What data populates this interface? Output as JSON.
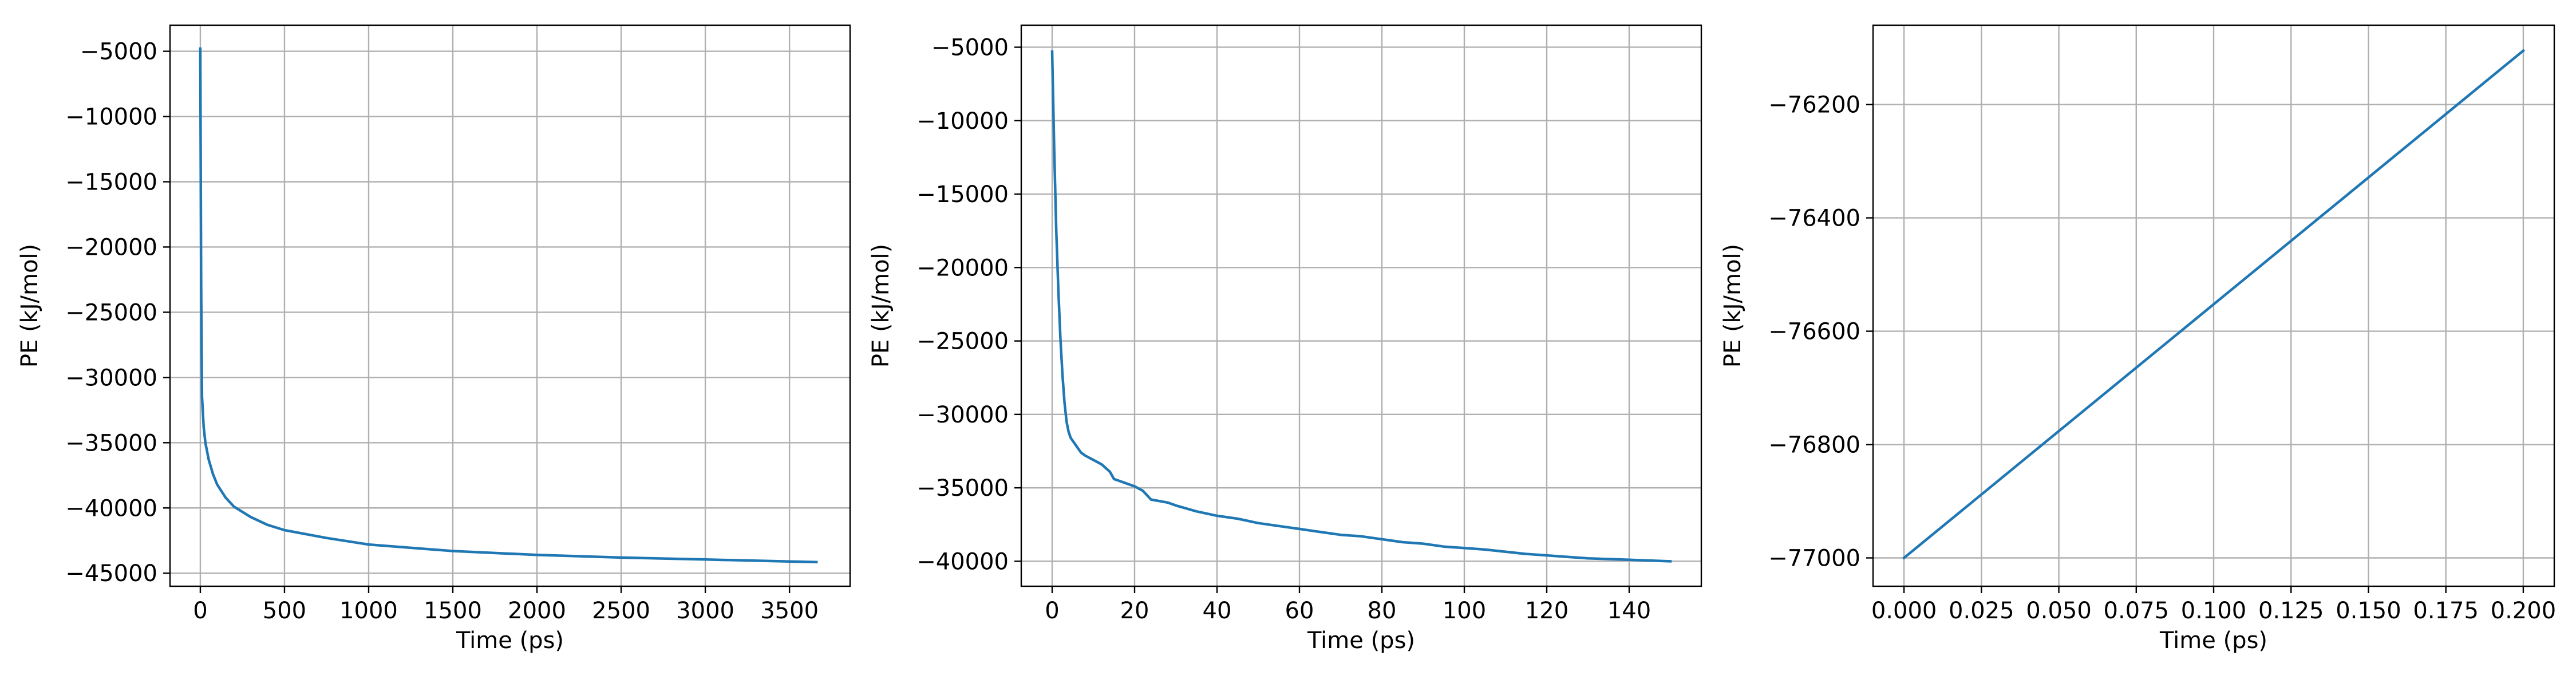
{
  "chart_data": [
    {
      "type": "line",
      "xlabel": "Time (ps)",
      "ylabel": "PE (kJ/mol)",
      "xlim": [
        -180,
        3860
      ],
      "ylim": [
        -46000,
        -3000
      ],
      "xticks": [
        0,
        500,
        1000,
        1500,
        2000,
        2500,
        3000,
        3500
      ],
      "xtick_labels": [
        "0",
        "500",
        "1000",
        "1500",
        "2000",
        "2500",
        "3000",
        "3500"
      ],
      "yticks": [
        -5000,
        -10000,
        -15000,
        -20000,
        -25000,
        -30000,
        -35000,
        -40000,
        -45000
      ],
      "ytick_labels": [
        "−5000",
        "−10000",
        "−15000",
        "−20000",
        "−25000",
        "−30000",
        "−35000",
        "−40000",
        "−45000"
      ],
      "grid": true,
      "color": "#1f77b4",
      "series": [
        {
          "x": [
            0,
            5,
            10,
            20,
            30,
            50,
            75,
            100,
            150,
            200,
            300,
            400,
            500,
            750,
            1000,
            1500,
            2000,
            2500,
            3000,
            3500,
            3660
          ],
          "y": [
            -4800,
            -23000,
            -31500,
            -33800,
            -35000,
            -36300,
            -37400,
            -38200,
            -39200,
            -39900,
            -40700,
            -41300,
            -41700,
            -42300,
            -42800,
            -43300,
            -43600,
            -43800,
            -43950,
            -44100,
            -44150
          ]
        }
      ]
    },
    {
      "type": "line",
      "xlabel": "Time (ps)",
      "ylabel": "PE (kJ/mol)",
      "xlim": [
        -7.5,
        157.5
      ],
      "ylim": [
        -41700,
        -3500
      ],
      "xticks": [
        0,
        20,
        40,
        60,
        80,
        100,
        120,
        140
      ],
      "xtick_labels": [
        "0",
        "20",
        "40",
        "60",
        "80",
        "100",
        "120",
        "140"
      ],
      "yticks": [
        -5000,
        -10000,
        -15000,
        -20000,
        -25000,
        -30000,
        -35000,
        -40000
      ],
      "ytick_labels": [
        "−5000",
        "−10000",
        "−15000",
        "−20000",
        "−25000",
        "−30000",
        "−35000",
        "−40000"
      ],
      "grid": true,
      "color": "#1f77b4",
      "series": [
        {
          "x": [
            0,
            0.5,
            1,
            1.5,
            2,
            2.5,
            3,
            3.5,
            4,
            4.5,
            5,
            6,
            7,
            8,
            10,
            12,
            14,
            15,
            16,
            18,
            20,
            22,
            24,
            26,
            28,
            30,
            35,
            40,
            45,
            50,
            55,
            60,
            65,
            70,
            75,
            80,
            85,
            90,
            95,
            100,
            105,
            110,
            115,
            120,
            125,
            130,
            135,
            140,
            145,
            150
          ],
          "y": [
            -5300,
            -12000,
            -17500,
            -21500,
            -24800,
            -27300,
            -29200,
            -30500,
            -31200,
            -31600,
            -31800,
            -32200,
            -32600,
            -32800,
            -33100,
            -33400,
            -33900,
            -34400,
            -34500,
            -34700,
            -34900,
            -35200,
            -35800,
            -35900,
            -36000,
            -36200,
            -36600,
            -36900,
            -37100,
            -37400,
            -37600,
            -37800,
            -38000,
            -38200,
            -38300,
            -38500,
            -38700,
            -38800,
            -39000,
            -39100,
            -39200,
            -39350,
            -39500,
            -39600,
            -39700,
            -39800,
            -39850,
            -39900,
            -39950,
            -40000
          ]
        }
      ]
    },
    {
      "type": "line",
      "xlabel": "Time (ps)",
      "ylabel": "PE (kJ/mol)",
      "xlim": [
        -0.01,
        0.21
      ],
      "ylim": [
        -77050,
        -76060
      ],
      "xticks": [
        0,
        0.025,
        0.05,
        0.075,
        0.1,
        0.125,
        0.15,
        0.175,
        0.2
      ],
      "xtick_labels": [
        "0.000",
        "0.025",
        "0.050",
        "0.075",
        "0.100",
        "0.125",
        "0.150",
        "0.175",
        "0.200"
      ],
      "yticks": [
        -76200,
        -76400,
        -76600,
        -76800,
        -77000
      ],
      "ytick_labels": [
        "−76200",
        "−76400",
        "−76600",
        "−76800",
        "−77000"
      ],
      "grid": true,
      "color": "#1f77b4",
      "series": [
        {
          "x": [
            0,
            0.2
          ],
          "y": [
            -77000,
            -76105
          ]
        }
      ]
    }
  ]
}
